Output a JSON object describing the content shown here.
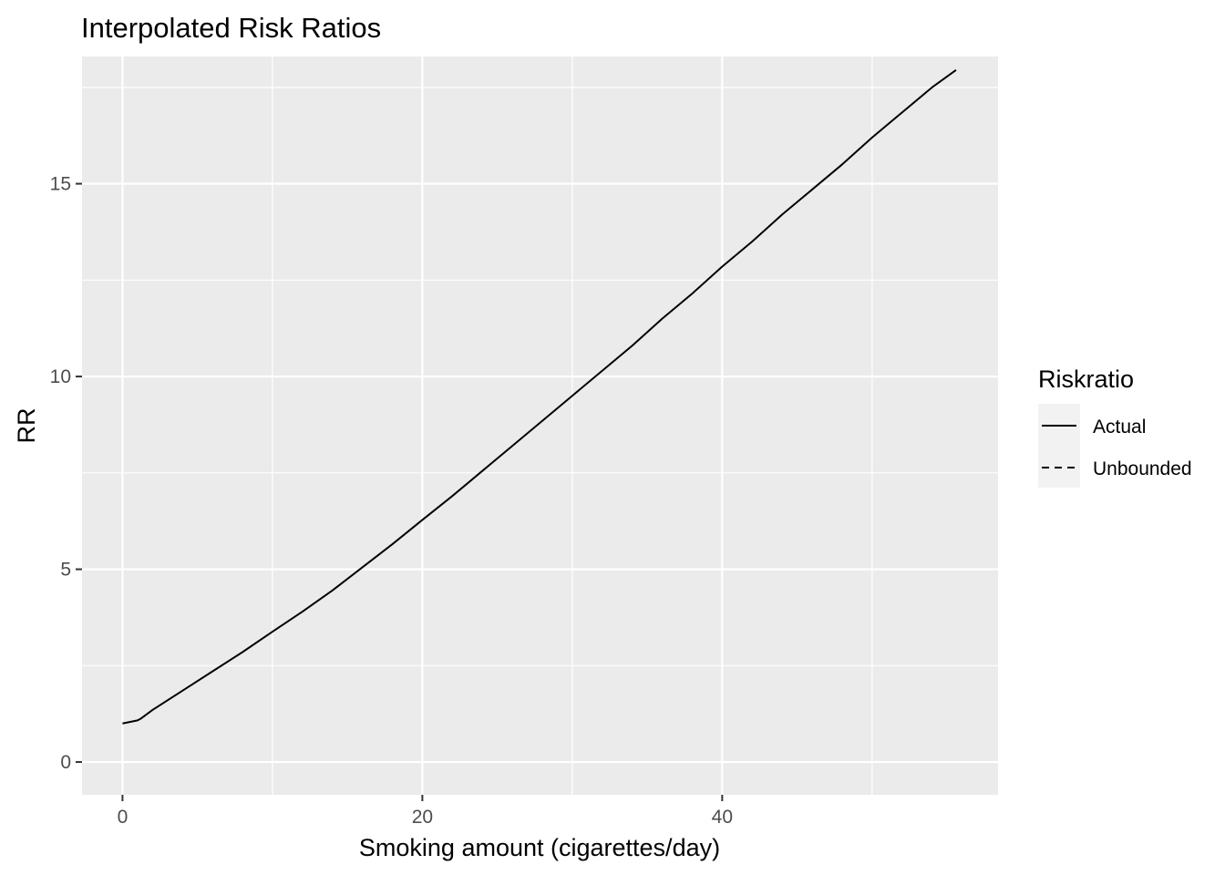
{
  "chart_data": {
    "type": "line",
    "title": "Interpolated Risk Ratios",
    "xlabel": "Smoking amount (cigarettes/day)",
    "ylabel": "RR",
    "xlim": [
      -2.7,
      58.4
    ],
    "ylim": [
      -0.85,
      18.3
    ],
    "x_ticks": [
      0,
      20,
      40
    ],
    "x_tick_labels": [
      "0",
      "20",
      "40"
    ],
    "x_minor_ticks": [
      10,
      30,
      50
    ],
    "y_ticks": [
      0,
      5,
      10,
      15
    ],
    "y_tick_labels": [
      "0",
      "5",
      "10",
      "15"
    ],
    "y_minor_ticks": [
      2.5,
      7.5,
      12.5,
      17.5
    ],
    "grid": true,
    "colors": {
      "panel": "#ebebeb",
      "grid": "#ffffff",
      "line": "#000000",
      "legend_key": "#f2f2f2"
    },
    "legend": {
      "title": "Riskratio",
      "position": "right",
      "entries": [
        {
          "label": "Actual",
          "linetype": "solid"
        },
        {
          "label": "Unbounded",
          "linetype": "dashed"
        }
      ]
    },
    "series": [
      {
        "name": "Actual",
        "linetype": "solid",
        "x": [
          0,
          1,
          1.2,
          2,
          4,
          6,
          8,
          10,
          12,
          14,
          16,
          18,
          20,
          22,
          24,
          26,
          28,
          30,
          32,
          34,
          36,
          38,
          40,
          42,
          44,
          46,
          48,
          50,
          52,
          54,
          55.6
        ],
        "y": [
          1.0,
          1.08,
          1.12,
          1.35,
          1.85,
          2.35,
          2.85,
          3.38,
          3.9,
          4.45,
          5.05,
          5.65,
          6.28,
          6.9,
          7.55,
          8.2,
          8.85,
          9.5,
          10.15,
          10.8,
          11.5,
          12.15,
          12.85,
          13.5,
          14.2,
          14.85,
          15.5,
          16.2,
          16.85,
          17.5,
          17.95
        ]
      },
      {
        "name": "Unbounded",
        "linetype": "dashed",
        "x": [],
        "y": []
      }
    ]
  }
}
